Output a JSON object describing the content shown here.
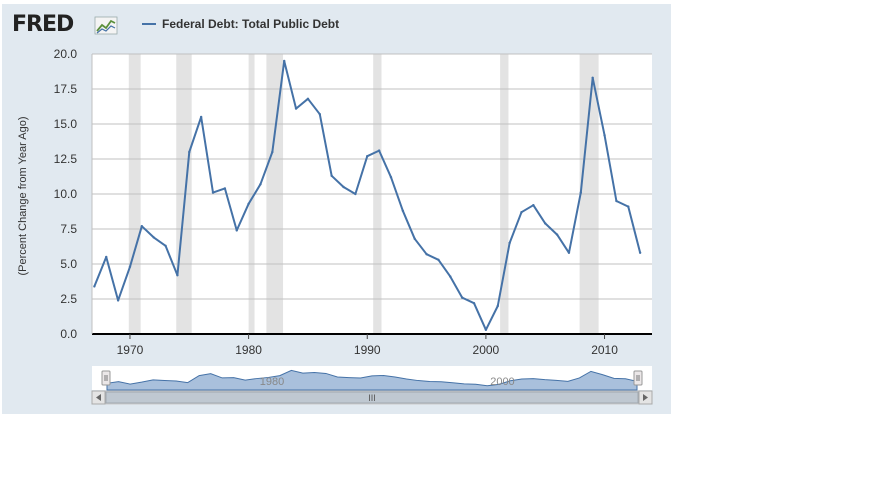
{
  "brand": {
    "logo_text": "FRED",
    "logo_icon": "line-chart-icon"
  },
  "chart_data": {
    "type": "line",
    "series": [
      {
        "name": "Federal Debt: Total Public Debt",
        "color": "#4572a7",
        "x": [
          1967,
          1968,
          1969,
          1970,
          1971,
          1972,
          1973,
          1974,
          1975,
          1976,
          1977,
          1978,
          1979,
          1980,
          1981,
          1982,
          1983,
          1984,
          1985,
          1986,
          1987,
          1988,
          1989,
          1990,
          1991,
          1992,
          1993,
          1994,
          1995,
          1996,
          1997,
          1998,
          1999,
          2000,
          2001,
          2002,
          2003,
          2004,
          2005,
          2006,
          2007,
          2008,
          2009,
          2010,
          2011,
          2012,
          2013
        ],
        "values": [
          3.4,
          5.5,
          2.4,
          4.8,
          7.7,
          6.9,
          6.3,
          4.2,
          13.0,
          15.5,
          10.1,
          10.4,
          7.4,
          9.3,
          10.7,
          13.0,
          19.5,
          16.1,
          16.8,
          15.7,
          11.3,
          10.5,
          10.0,
          12.7,
          13.1,
          11.2,
          8.8,
          6.8,
          5.7,
          5.3,
          4.1,
          2.6,
          2.2,
          0.3,
          2.0,
          6.5,
          8.7,
          9.2,
          7.9,
          7.1,
          5.8,
          10.1,
          18.3,
          14.2,
          9.5,
          9.1,
          5.8
        ]
      }
    ],
    "recessions": [
      [
        1969.9,
        1970.9
      ],
      [
        1973.9,
        1975.2
      ],
      [
        1980.0,
        1980.5
      ],
      [
        1981.5,
        1982.9
      ],
      [
        1990.5,
        1991.2
      ],
      [
        2001.2,
        2001.9
      ],
      [
        2007.9,
        2009.5
      ]
    ],
    "ylabel": "(Percent Change from Year Ago)",
    "xlabel": "",
    "title": "",
    "ylim": [
      0,
      20
    ],
    "xlim": [
      1966.8,
      2014
    ],
    "yticks": [
      "0.0",
      "2.5",
      "5.0",
      "7.5",
      "10.0",
      "12.5",
      "15.0",
      "17.5",
      "20.0"
    ],
    "xticks": [
      "1970",
      "1980",
      "1990",
      "2000",
      "2010"
    ],
    "navigator_labels": [
      "1980",
      "2000"
    ],
    "grid": true,
    "legend": "top"
  },
  "navigator": {
    "scrollbar_grip": "III"
  }
}
